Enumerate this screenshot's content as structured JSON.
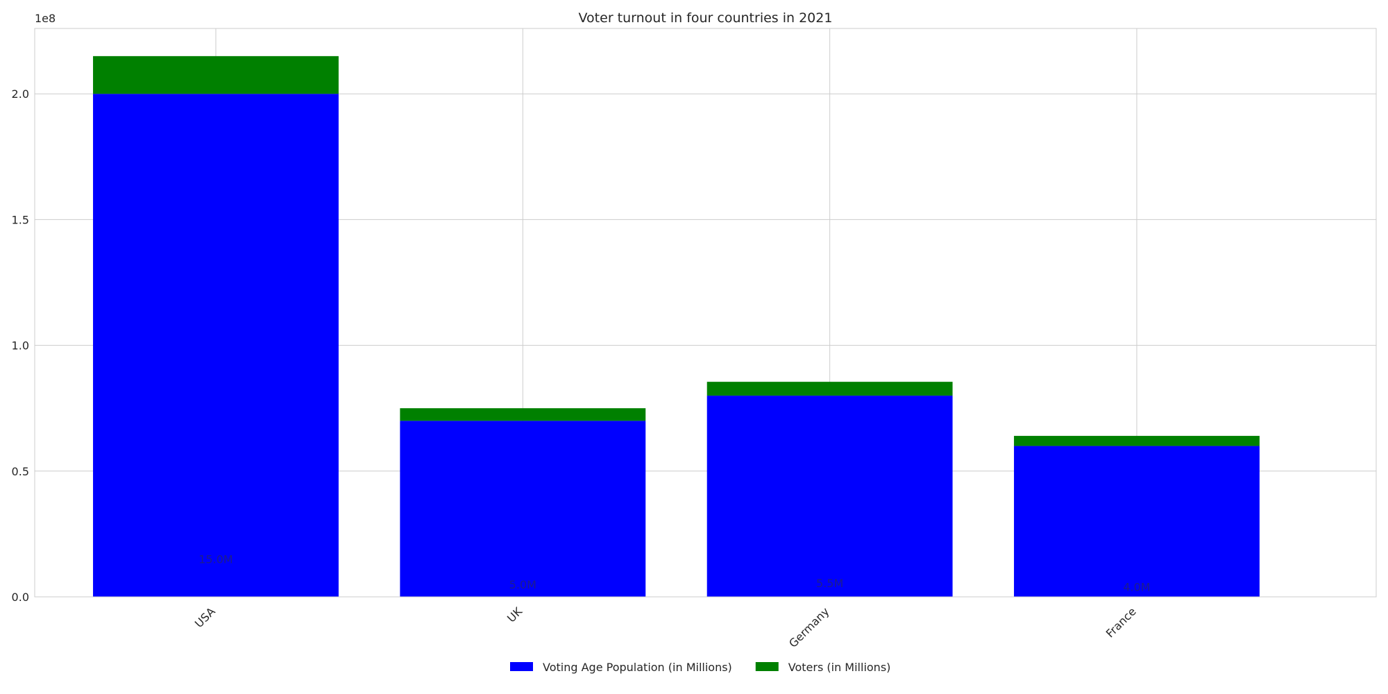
{
  "chart_data": {
    "type": "bar",
    "stacked": true,
    "title": "Voter turnout in four countries in 2021",
    "categories": [
      "USA",
      "UK",
      "Germany",
      "France"
    ],
    "series": [
      {
        "name": "Voting Age Population (in Millions)",
        "values": [
          200000000,
          70000000,
          80000000,
          60000000
        ],
        "color": "#0000ff"
      },
      {
        "name": "Voters (in Millions)",
        "values": [
          15000000,
          5000000,
          5500000,
          4000000
        ],
        "color": "#008000"
      }
    ],
    "data_labels": [
      "15.0M",
      "5.0M",
      "5.5M",
      "4.0M"
    ],
    "y_ticks": [
      0,
      50000000,
      100000000,
      150000000,
      200000000
    ],
    "y_tick_labels": [
      "0.0",
      "0.5",
      "1.0",
      "1.5",
      "2.0"
    ],
    "y_offset_label": "1e8",
    "ylim": [
      0,
      226000000
    ],
    "grid": true,
    "legend_position": "bottom-center"
  }
}
